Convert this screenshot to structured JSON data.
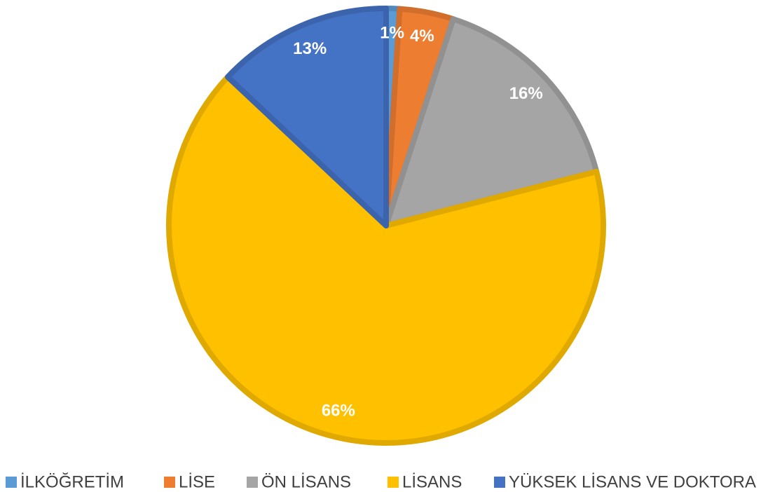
{
  "chart_data": {
    "type": "pie",
    "categories": [
      "İLKÖĞRETİM",
      "LİSE",
      "ÖN LİSANS",
      "LİSANS",
      "YÜKSEK LİSANS VE DOKTORA"
    ],
    "values": [
      1,
      4,
      16,
      66,
      13
    ],
    "value_labels": [
      "1%",
      "4%",
      "16%",
      "66%",
      "13%"
    ],
    "colors": [
      "#5b9bd5",
      "#ed7d31",
      "#a5a5a5",
      "#ffc000",
      "#4472c4"
    ],
    "legend": "bottom"
  }
}
